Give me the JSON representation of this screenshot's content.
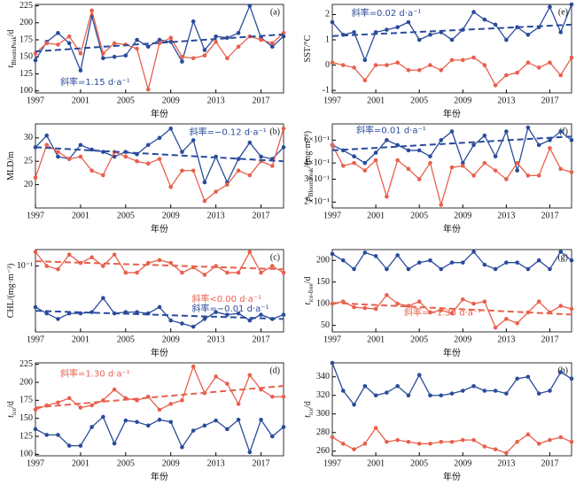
{
  "chart_data": [
    {
      "type": "line",
      "panel": "(a)",
      "ylabel": {
        "main": "t",
        "sub": "BloomPeak",
        "unit": "/d"
      },
      "xlabel": "年份",
      "x": [
        1997,
        1998,
        1999,
        2000,
        2001,
        2002,
        2003,
        2004,
        2005,
        2006,
        2007,
        2008,
        2009,
        2010,
        2011,
        2012,
        2013,
        2014,
        2015,
        2016,
        2017,
        2018,
        2019
      ],
      "xlim": [
        1997,
        2019
      ],
      "xticks": [
        1997,
        2001,
        2005,
        2009,
        2013,
        2017
      ],
      "ylim": [
        97,
        227
      ],
      "yticks": [
        100,
        125,
        150,
        175,
        200,
        225
      ],
      "series": [
        {
          "color": "#2a4b9b",
          "values": [
            145,
            172,
            185,
            170,
            130,
            210,
            148,
            150,
            152,
            175,
            165,
            175,
            172,
            143,
            202,
            160,
            180,
            178,
            185,
            225,
            178,
            165,
            180
          ]
        },
        {
          "color": "#e8604c",
          "values": [
            155,
            170,
            168,
            180,
            155,
            218,
            155,
            170,
            168,
            162,
            102,
            170,
            178,
            150,
            148,
            152,
            172,
            148,
            165,
            180,
            175,
            170,
            185
          ]
        }
      ],
      "trends": [
        {
          "color": "#2a4b9b",
          "x": [
            1997,
            2019
          ],
          "values": [
            158,
            183
          ]
        }
      ],
      "annotations": [
        {
          "text": "斜率=1.15 d·a⁻¹",
          "color": "#2a4b9b"
        }
      ]
    },
    {
      "type": "line",
      "panel": "(b)",
      "ylabel": {
        "main": "MLD/m"
      },
      "xlabel": "年份",
      "x": [
        1997,
        1998,
        1999,
        2000,
        2001,
        2002,
        2003,
        2004,
        2005,
        2006,
        2007,
        2008,
        2009,
        2010,
        2011,
        2012,
        2013,
        2014,
        2015,
        2016,
        2017,
        2018,
        2019
      ],
      "xlim": [
        1997,
        2019
      ],
      "xticks": [
        1997,
        2001,
        2005,
        2009,
        2013,
        2017
      ],
      "ylim": [
        15,
        33
      ],
      "yticks": [
        20,
        25,
        30
      ],
      "series": [
        {
          "color": "#2a4b9b",
          "values": [
            28,
            30.5,
            26,
            25.5,
            28.5,
            27.5,
            27,
            26,
            27,
            26.5,
            28.5,
            30,
            32,
            27,
            29.5,
            20.5,
            26,
            20.5,
            25.5,
            29,
            26,
            25.5,
            28
          ]
        },
        {
          "color": "#e8604c",
          "values": [
            21.5,
            28.5,
            27,
            25.5,
            26,
            23,
            22,
            27,
            26,
            25,
            24.5,
            25.5,
            19.5,
            23,
            23,
            16.5,
            18.5,
            20,
            23,
            22,
            25,
            24,
            32
          ]
        }
      ],
      "trends": [
        {
          "color": "#2a4b9b",
          "x": [
            1997,
            2019
          ],
          "values": [
            28,
            25
          ]
        }
      ],
      "annotations": [
        {
          "text": "斜率=−0.12 d·a⁻¹",
          "color": "#2a4b9b"
        }
      ]
    },
    {
      "type": "line",
      "panel": "(c)",
      "ylabel": {
        "main": "CHL/(mg·m⁻³)"
      },
      "xlabel": "年份",
      "log": true,
      "x": [
        1997,
        1998,
        1999,
        2000,
        2001,
        2002,
        2003,
        2004,
        2005,
        2006,
        2007,
        2008,
        2009,
        2010,
        2011,
        2012,
        2013,
        2014,
        2015,
        2016,
        2017,
        2018,
        2019
      ],
      "xlim": [
        1997,
        2019
      ],
      "xticks": [
        1997,
        2001,
        2005,
        2009,
        2013,
        2017
      ],
      "ylim": [
        0.035,
        0.13
      ],
      "yticks": [
        {
          "value": 0.1,
          "label": "10⁻¹"
        }
      ],
      "series": [
        {
          "color": "#2a4b9b",
          "values": [
            0.052,
            0.047,
            0.043,
            0.047,
            0.047,
            0.048,
            0.06,
            0.047,
            0.048,
            0.048,
            0.047,
            0.052,
            0.042,
            0.04,
            0.038,
            0.043,
            0.048,
            0.046,
            0.047,
            0.042,
            0.046,
            0.043,
            0.046
          ]
        },
        {
          "color": "#e8604c",
          "values": [
            0.125,
            0.1,
            0.095,
            0.12,
            0.105,
            0.115,
            0.1,
            0.12,
            0.09,
            0.09,
            0.105,
            0.11,
            0.105,
            0.09,
            0.098,
            0.087,
            0.1,
            0.09,
            0.09,
            0.125,
            0.09,
            0.1,
            0.09
          ]
        }
      ],
      "trends": [
        {
          "color": "#e8604c",
          "x": [
            1997,
            2019
          ],
          "values": [
            0.108,
            0.095
          ]
        },
        {
          "color": "#2a4b9b",
          "x": [
            1997,
            2019
          ],
          "values": [
            0.049,
            0.043
          ]
        }
      ],
      "annotations": [
        {
          "text": "斜率<0.00 d·a⁻¹",
          "color": "#e8604c"
        },
        {
          "text": "斜率=−0.01 d·a⁻¹",
          "color": "#2a4b9b"
        }
      ]
    },
    {
      "type": "line",
      "panel": "(d)",
      "ylabel": {
        "main": "t",
        "sub": "ice",
        "unit": "/d"
      },
      "xlabel": "年份",
      "x": [
        1997,
        1998,
        1999,
        2000,
        2001,
        2002,
        2003,
        2004,
        2005,
        2006,
        2007,
        2008,
        2009,
        2010,
        2011,
        2012,
        2013,
        2014,
        2015,
        2016,
        2017,
        2018,
        2019
      ],
      "xlim": [
        1997,
        2019
      ],
      "xticks": [
        1997,
        2001,
        2005,
        2009,
        2013,
        2017
      ],
      "ylim": [
        98,
        227
      ],
      "yticks": [
        100,
        125,
        150,
        175,
        200,
        225
      ],
      "series": [
        {
          "color": "#2a4b9b",
          "values": [
            135,
            127,
            127,
            112,
            112,
            138,
            152,
            115,
            147,
            145,
            140,
            148,
            145,
            110,
            133,
            140,
            147,
            135,
            148,
            103,
            148,
            125,
            138
          ]
        },
        {
          "color": "#e8604c",
          "values": [
            162,
            168,
            172,
            178,
            165,
            168,
            175,
            190,
            178,
            175,
            180,
            162,
            170,
            175,
            222,
            185,
            208,
            198,
            170,
            210,
            190,
            180,
            180
          ]
        }
      ],
      "trends": [
        {
          "color": "#e8604c",
          "x": [
            1997,
            2019
          ],
          "values": [
            165,
            195
          ]
        }
      ],
      "annotations": [
        {
          "text": "斜率=1.30 d·a⁻¹",
          "color": "#e8604c"
        }
      ]
    },
    {
      "type": "line",
      "panel": "(e)",
      "ylabel": {
        "main": "SST/°C"
      },
      "xlabel": "年份",
      "x": [
        1997,
        1998,
        1999,
        2000,
        2001,
        2002,
        2003,
        2004,
        2005,
        2006,
        2007,
        2008,
        2009,
        2010,
        2011,
        2012,
        2013,
        2014,
        2015,
        2016,
        2017,
        2018,
        2019
      ],
      "xlim": [
        1997,
        2019
      ],
      "xticks": [
        1997,
        2001,
        2005,
        2009,
        2013,
        2017
      ],
      "ylim": [
        -1.1,
        2.4
      ],
      "yticks": [
        -1,
        0,
        1,
        2
      ],
      "series": [
        {
          "color": "#2a4b9b",
          "values": [
            1.7,
            1.2,
            1.3,
            0.2,
            1.3,
            1.4,
            1.5,
            1.7,
            1.0,
            1.2,
            1.3,
            1.0,
            1.4,
            2.1,
            1.8,
            1.6,
            1.0,
            1.5,
            1.2,
            1.5,
            2.3,
            1.3,
            2.4
          ]
        },
        {
          "color": "#e8604c",
          "values": [
            0.1,
            0.0,
            -0.1,
            -0.6,
            0.0,
            0.0,
            0.1,
            -0.2,
            -0.2,
            0.0,
            -0.2,
            0.2,
            0.2,
            0.3,
            0.0,
            -0.8,
            -0.4,
            -0.3,
            0.1,
            -0.1,
            0.1,
            -0.4,
            0.3
          ]
        }
      ],
      "trends": [
        {
          "color": "#2a4b9b",
          "x": [
            1997,
            2019
          ],
          "values": [
            1.15,
            1.6
          ]
        }
      ],
      "annotations": [
        {
          "text": "斜率=0.02 d·a⁻¹",
          "color": "#2a4b9b"
        }
      ]
    },
    {
      "type": "line",
      "panel": "(f)",
      "ylabel": {
        "main": "ρ",
        "sub": "BloomPeak",
        "unit": "/(mg·m⁻³)"
      },
      "xlabel": "年份",
      "log": true,
      "x": [
        1997,
        1998,
        1999,
        2000,
        2001,
        2002,
        2003,
        2004,
        2005,
        2006,
        2007,
        2008,
        2009,
        2010,
        2011,
        2012,
        2013,
        2014,
        2015,
        2016,
        2017,
        2018,
        2019
      ],
      "xlim": [
        1997,
        2019
      ],
      "xticks": [
        1997,
        2001,
        2005,
        2009,
        2013,
        2017
      ],
      "ylim": [
        0.18,
        0.8
      ],
      "yticks": [
        {
          "value": 0.2,
          "label": "2×10⁻¹"
        },
        {
          "value": 0.3,
          "label": "3×10⁻¹"
        },
        {
          "value": 0.4,
          "label": "4×10⁻¹"
        },
        {
          "value": 0.6,
          "label": "6×10⁻¹"
        }
      ],
      "series": [
        {
          "color": "#2a4b9b",
          "values": [
            0.55,
            0.5,
            0.45,
            0.4,
            0.48,
            0.6,
            0.55,
            0.5,
            0.5,
            0.45,
            0.6,
            0.7,
            0.4,
            0.55,
            0.65,
            0.45,
            0.7,
            0.35,
            0.75,
            0.55,
            0.6,
            0.7,
            0.6
          ]
        },
        {
          "color": "#e8604c",
          "values": [
            0.55,
            0.38,
            0.4,
            0.35,
            0.42,
            0.22,
            0.42,
            0.36,
            0.3,
            0.4,
            0.19,
            0.37,
            0.38,
            0.32,
            0.4,
            0.35,
            0.3,
            0.4,
            0.32,
            0.32,
            0.52,
            0.36,
            0.34
          ]
        }
      ],
      "trends": [
        {
          "color": "#2a4b9b",
          "x": [
            1997,
            2019
          ],
          "values": [
            0.5,
            0.64
          ]
        }
      ],
      "annotations": [
        {
          "text": "斜率=0.01 d·a⁻¹",
          "color": "#2a4b9b"
        }
      ]
    },
    {
      "type": "line",
      "panel": "(g)",
      "ylabel": {
        "main": "t",
        "sub": "ice-free",
        "unit": "/d"
      },
      "xlabel": "年份",
      "x": [
        1997,
        1998,
        1999,
        2000,
        2001,
        2002,
        2003,
        2004,
        2005,
        2006,
        2007,
        2008,
        2009,
        2010,
        2011,
        2012,
        2013,
        2014,
        2015,
        2016,
        2017,
        2018,
        2019
      ],
      "xlim": [
        1997,
        2019
      ],
      "xticks": [
        1997,
        2001,
        2005,
        2009,
        2013,
        2017
      ],
      "ylim": [
        35,
        225
      ],
      "yticks": [
        50,
        100,
        150,
        200
      ],
      "series": [
        {
          "color": "#2a4b9b",
          "values": [
            215,
            200,
            180,
            218,
            210,
            180,
            212,
            180,
            195,
            200,
            180,
            195,
            195,
            220,
            190,
            180,
            195,
            195,
            180,
            200,
            180,
            220,
            200
          ]
        },
        {
          "color": "#e8604c",
          "values": [
            100,
            105,
            92,
            90,
            88,
            120,
            100,
            95,
            105,
            80,
            85,
            78,
            110,
            100,
            105,
            45,
            65,
            55,
            80,
            105,
            80,
            95,
            88
          ]
        }
      ],
      "trends": [
        {
          "color": "#e8604c",
          "x": [
            1997,
            2019
          ],
          "values": [
            102,
            75
          ]
        }
      ],
      "annotations": [
        {
          "text": "斜率=−1.30 d·a⁻¹",
          "color": "#e8604c"
        }
      ]
    },
    {
      "type": "line",
      "panel": "(h)",
      "ylabel": {
        "main": "t",
        "sub": "ice",
        "unit": "/d"
      },
      "xlabel": "年份",
      "x": [
        1997,
        1998,
        1999,
        2000,
        2001,
        2002,
        2003,
        2004,
        2005,
        2006,
        2007,
        2008,
        2009,
        2010,
        2011,
        2012,
        2013,
        2014,
        2015,
        2016,
        2017,
        2018,
        2019
      ],
      "xlim": [
        1997,
        2019
      ],
      "xticks": [
        1997,
        2001,
        2005,
        2009,
        2013,
        2017
      ],
      "ylim": [
        255,
        355
      ],
      "yticks": [
        260,
        280,
        300,
        320,
        340
      ],
      "series": [
        {
          "color": "#2a4b9b",
          "values": [
            355,
            325,
            310,
            330,
            320,
            323,
            330,
            320,
            342,
            320,
            320,
            322,
            325,
            330,
            325,
            325,
            322,
            338,
            340,
            322,
            325,
            345,
            338
          ]
        },
        {
          "color": "#e8604c",
          "values": [
            275,
            268,
            262,
            268,
            285,
            270,
            272,
            270,
            268,
            268,
            270,
            270,
            272,
            272,
            265,
            262,
            258,
            270,
            278,
            268,
            272,
            275,
            270
          ]
        }
      ],
      "trends": [],
      "annotations": []
    }
  ]
}
